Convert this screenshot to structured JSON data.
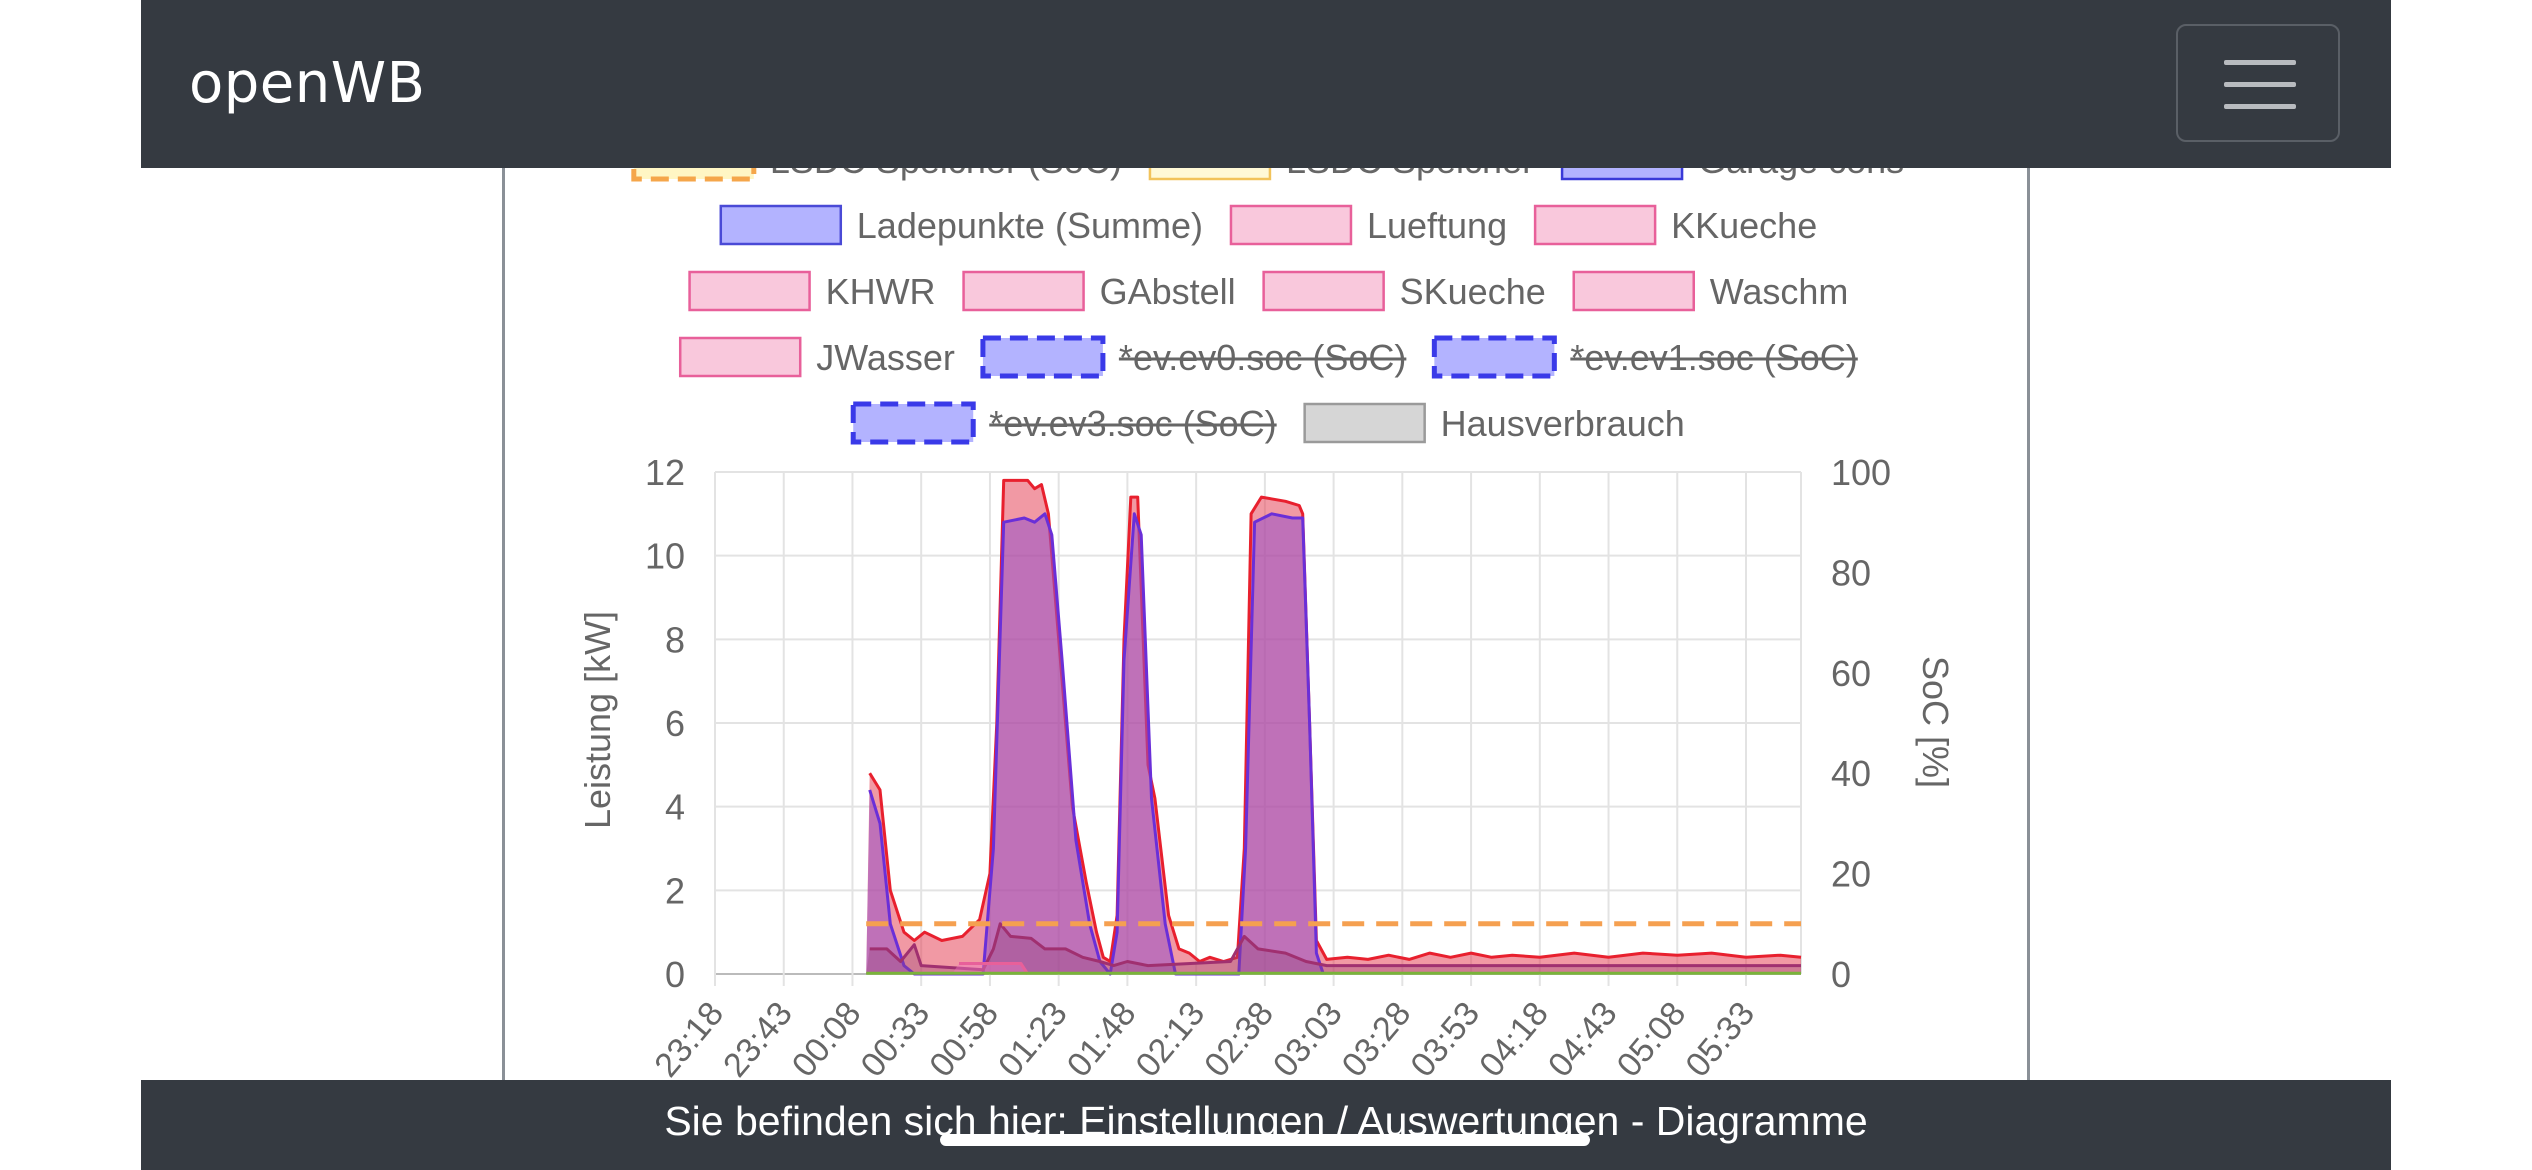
{
  "app": {
    "brand": "openWB"
  },
  "navbar": {
    "menu_icon": "hamburger-menu-icon"
  },
  "footer": {
    "breadcrumb": "Sie befinden sich hier: Einstellungen / Auswertungen - Diagramme"
  },
  "chart_data": {
    "type": "area",
    "y_left": {
      "label": "Leistung [kW]",
      "range": [
        0,
        12
      ],
      "ticks": [
        0,
        2,
        4,
        6,
        8,
        10,
        12
      ]
    },
    "y_right": {
      "label": "SoC [%]",
      "range": [
        0,
        100
      ],
      "ticks": [
        0,
        20,
        40,
        60,
        80,
        100
      ]
    },
    "x_ticks": [
      "23:18",
      "23:43",
      "00:08",
      "00:33",
      "00:58",
      "01:23",
      "01:48",
      "02:13",
      "02:38",
      "03:03",
      "03:28",
      "03:53",
      "04:18",
      "04:43",
      "05:08",
      "05:33"
    ],
    "grid": true,
    "legend_position": "top",
    "legend_rows": [
      [
        {
          "label": "LSDC Speicher (SoC)",
          "fill": "#fff6c4",
          "stroke": "#f5a64a",
          "dashed": true,
          "hidden": false,
          "partial": true
        },
        {
          "label": "LSDC Speicher",
          "fill": "#fff9d6",
          "stroke": "#f2c35a",
          "dashed": false,
          "hidden": false,
          "partial": true
        },
        {
          "label": "Garage cons",
          "fill": "#b3b3ff",
          "stroke": "#3a3ad8",
          "dashed": false,
          "hidden": false,
          "partial": true
        }
      ],
      [
        {
          "label": "Ladepunkte (Summe)",
          "fill": "#b3b3ff",
          "stroke": "#4a4ad6",
          "dashed": false,
          "hidden": false
        },
        {
          "label": "Lueftung",
          "fill": "#f9c8dc",
          "stroke": "#e8609a",
          "dashed": false,
          "hidden": false
        },
        {
          "label": "KKueche",
          "fill": "#f9c8dc",
          "stroke": "#e8609a",
          "dashed": false,
          "hidden": false
        }
      ],
      [
        {
          "label": "KHWR",
          "fill": "#f9c8dc",
          "stroke": "#e8609a",
          "dashed": false,
          "hidden": false
        },
        {
          "label": "GAbstell",
          "fill": "#f9c8dc",
          "stroke": "#e8609a",
          "dashed": false,
          "hidden": false
        },
        {
          "label": "SKueche",
          "fill": "#f9c8dc",
          "stroke": "#e8609a",
          "dashed": false,
          "hidden": false
        },
        {
          "label": "Waschm",
          "fill": "#f9c8dc",
          "stroke": "#e8609a",
          "dashed": false,
          "hidden": false
        }
      ],
      [
        {
          "label": "JWasser",
          "fill": "#f9c8dc",
          "stroke": "#e8609a",
          "dashed": false,
          "hidden": false
        },
        {
          "label": "*ev.ev0.soc (SoC)",
          "fill": "#b3b3ff",
          "stroke": "#3a3ae8",
          "dashed": true,
          "hidden": true
        },
        {
          "label": "*ev.ev1.soc (SoC)",
          "fill": "#b3b3ff",
          "stroke": "#3a3ae8",
          "dashed": true,
          "hidden": true
        }
      ],
      [
        {
          "label": "*ev.ev3.soc (SoC)",
          "fill": "#b3b3ff",
          "stroke": "#3a3ae8",
          "dashed": true,
          "hidden": true
        },
        {
          "label": "Hausverbrauch",
          "fill": "#d6d6d6",
          "stroke": "#9a9a9a",
          "dashed": false,
          "hidden": false
        }
      ]
    ],
    "series": [
      {
        "name": "Hausverbrauch",
        "axis": "left",
        "fill": "rgba(230,70,90,0.55)",
        "stroke": "#e8202e",
        "points": [
          [
            2.2,
            0
          ],
          [
            2.25,
            4.8
          ],
          [
            2.4,
            4.4
          ],
          [
            2.55,
            2.0
          ],
          [
            2.75,
            1.0
          ],
          [
            2.9,
            0.8
          ],
          [
            3.05,
            1.0
          ],
          [
            3.3,
            0.8
          ],
          [
            3.6,
            0.9
          ],
          [
            3.85,
            1.3
          ],
          [
            4.0,
            2.4
          ],
          [
            4.1,
            6.0
          ],
          [
            4.2,
            11.8
          ],
          [
            4.55,
            11.8
          ],
          [
            4.65,
            11.6
          ],
          [
            4.75,
            11.7
          ],
          [
            4.85,
            11.0
          ],
          [
            5.0,
            8.0
          ],
          [
            5.2,
            4.0
          ],
          [
            5.4,
            2.2
          ],
          [
            5.55,
            1.0
          ],
          [
            5.65,
            0.4
          ],
          [
            5.75,
            0.3
          ],
          [
            5.85,
            1.4
          ],
          [
            5.95,
            8.0
          ],
          [
            6.05,
            11.4
          ],
          [
            6.15,
            11.4
          ],
          [
            6.3,
            5.0
          ],
          [
            6.4,
            4.2
          ],
          [
            6.6,
            1.4
          ],
          [
            6.75,
            0.6
          ],
          [
            6.9,
            0.5
          ],
          [
            7.05,
            0.3
          ],
          [
            7.2,
            0.4
          ],
          [
            7.4,
            0.3
          ],
          [
            7.6,
            0.4
          ],
          [
            7.7,
            3.0
          ],
          [
            7.8,
            11.0
          ],
          [
            7.95,
            11.4
          ],
          [
            8.3,
            11.3
          ],
          [
            8.5,
            11.2
          ],
          [
            8.55,
            11.0
          ],
          [
            8.65,
            6.0
          ],
          [
            8.75,
            0.8
          ],
          [
            8.9,
            0.35
          ],
          [
            9.2,
            0.4
          ],
          [
            9.5,
            0.35
          ],
          [
            9.8,
            0.45
          ],
          [
            10.1,
            0.35
          ],
          [
            10.4,
            0.5
          ],
          [
            10.7,
            0.4
          ],
          [
            11.0,
            0.5
          ],
          [
            11.3,
            0.4
          ],
          [
            11.6,
            0.45
          ],
          [
            12.0,
            0.4
          ],
          [
            12.5,
            0.5
          ],
          [
            13.0,
            0.4
          ],
          [
            13.5,
            0.5
          ],
          [
            14.0,
            0.45
          ],
          [
            14.5,
            0.5
          ],
          [
            15.0,
            0.4
          ],
          [
            15.5,
            0.45
          ],
          [
            15.8,
            0.4
          ],
          [
            15.8,
            0
          ]
        ]
      },
      {
        "name": "Ladepunkte (Summe)",
        "axis": "left",
        "fill": "rgba(150,80,200,0.55)",
        "stroke": "#6a2fd8",
        "points": [
          [
            2.2,
            0
          ],
          [
            2.25,
            4.4
          ],
          [
            2.4,
            3.6
          ],
          [
            2.55,
            1.2
          ],
          [
            2.75,
            0.2
          ],
          [
            2.9,
            0
          ],
          [
            3.9,
            0
          ],
          [
            4.05,
            3.0
          ],
          [
            4.2,
            10.8
          ],
          [
            4.5,
            10.9
          ],
          [
            4.65,
            10.8
          ],
          [
            4.8,
            11.0
          ],
          [
            4.9,
            10.5
          ],
          [
            5.05,
            7.5
          ],
          [
            5.25,
            3.2
          ],
          [
            5.45,
            1.2
          ],
          [
            5.6,
            0.3
          ],
          [
            5.75,
            0
          ],
          [
            5.85,
            1.0
          ],
          [
            5.95,
            7.5
          ],
          [
            6.1,
            11.0
          ],
          [
            6.2,
            10.5
          ],
          [
            6.35,
            4.2
          ],
          [
            6.55,
            1.2
          ],
          [
            6.7,
            0
          ],
          [
            7.62,
            0
          ],
          [
            7.72,
            3.0
          ],
          [
            7.85,
            10.8
          ],
          [
            8.1,
            11.0
          ],
          [
            8.4,
            10.9
          ],
          [
            8.55,
            10.9
          ],
          [
            8.65,
            6.0
          ],
          [
            8.75,
            0.5
          ],
          [
            8.85,
            0
          ],
          [
            15.8,
            0
          ]
        ]
      },
      {
        "name": "Lueftung",
        "axis": "left",
        "fill": "rgba(150,70,120,0.35)",
        "stroke": "#a03070",
        "points": [
          [
            2.2,
            0
          ],
          [
            2.25,
            0.6
          ],
          [
            2.5,
            0.6
          ],
          [
            2.7,
            0.3
          ],
          [
            2.9,
            0.7
          ],
          [
            3.0,
            0.2
          ],
          [
            3.9,
            0.1
          ],
          [
            4.05,
            0.6
          ],
          [
            4.15,
            1.2
          ],
          [
            4.3,
            0.9
          ],
          [
            4.6,
            0.85
          ],
          [
            4.8,
            0.6
          ],
          [
            5.1,
            0.6
          ],
          [
            5.35,
            0.4
          ],
          [
            5.6,
            0.3
          ],
          [
            5.8,
            0.2
          ],
          [
            6.0,
            0.3
          ],
          [
            6.3,
            0.2
          ],
          [
            7.5,
            0.3
          ],
          [
            7.7,
            0.9
          ],
          [
            7.9,
            0.6
          ],
          [
            8.3,
            0.5
          ],
          [
            8.6,
            0.3
          ],
          [
            8.9,
            0.2
          ],
          [
            15.8,
            0.2
          ],
          [
            15.8,
            0
          ]
        ]
      },
      {
        "name": "KHWR",
        "axis": "left",
        "fill": "rgba(240,120,190,0.45)",
        "stroke": "#e8609a",
        "points": [
          [
            3.45,
            0
          ],
          [
            3.55,
            0.25
          ],
          [
            4.45,
            0.25
          ],
          [
            4.55,
            0
          ],
          [
            15.8,
            0
          ]
        ]
      },
      {
        "name": "LSDC Speicher (SoC)",
        "axis": "right",
        "fill": "none",
        "stroke": "#f5a050",
        "dashed": true,
        "points": [
          [
            2.2,
            10
          ],
          [
            15.8,
            10
          ]
        ]
      },
      {
        "name": "LSDC Speicher",
        "axis": "left",
        "fill": "none",
        "stroke": "#7ab33a",
        "points": [
          [
            2.2,
            0.02
          ],
          [
            15.8,
            0.02
          ]
        ]
      }
    ]
  }
}
